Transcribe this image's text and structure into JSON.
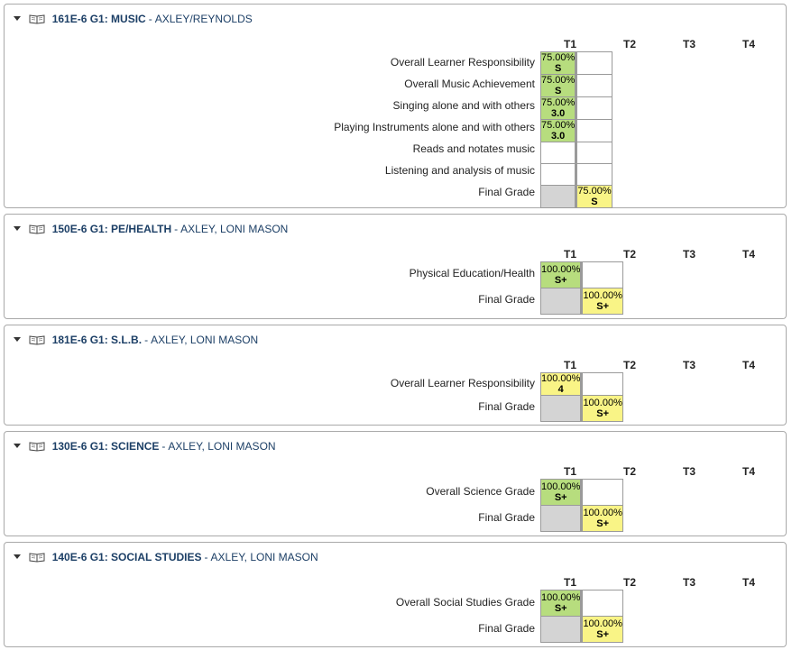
{
  "terms": [
    "T1",
    "T2",
    "T3",
    "T4"
  ],
  "courses": [
    {
      "title": "161E-6 G1: MUSIC",
      "teacher": "AXLEY/REYNOLDS",
      "rows": [
        {
          "label": "Overall Learner Responsibility",
          "pct": "75.00%",
          "grade": "S",
          "color": "green"
        },
        {
          "label": "Overall Music Achievement",
          "pct": "75.00%",
          "grade": "S",
          "color": "green"
        },
        {
          "label": "Singing alone and with others",
          "pct": "75.00%",
          "grade": "3.0",
          "color": "green"
        },
        {
          "label": "Playing Instruments alone and with others",
          "pct": "75.00%",
          "grade": "3.0",
          "color": "green"
        },
        {
          "label": "Reads and notates music",
          "pct": "",
          "grade": "",
          "color": "white"
        },
        {
          "label": "Listening and analysis of music",
          "pct": "",
          "grade": "",
          "color": "white"
        }
      ],
      "final": {
        "label": "Final Grade",
        "pct": "75.00%",
        "grade": "S"
      }
    },
    {
      "title": "150E-6 G1: PE/HEALTH",
      "teacher": "AXLEY, LONI MASON",
      "rows": [
        {
          "label": "Physical Education/Health",
          "pct": "100.00%",
          "grade": "S+",
          "color": "green"
        }
      ],
      "final": {
        "label": "Final Grade",
        "pct": "100.00%",
        "grade": "S+"
      }
    },
    {
      "title": "181E-6 G1: S.L.B.",
      "teacher": "AXLEY, LONI MASON",
      "rows": [
        {
          "label": "Overall Learner Responsibility",
          "pct": "100.00%",
          "grade": "4",
          "color": "yellow"
        }
      ],
      "final": {
        "label": "Final Grade",
        "pct": "100.00%",
        "grade": "S+"
      }
    },
    {
      "title": "130E-6 G1: SCIENCE",
      "teacher": "AXLEY, LONI MASON",
      "rows": [
        {
          "label": "Overall Science Grade",
          "pct": "100.00%",
          "grade": "S+",
          "color": "green"
        }
      ],
      "final": {
        "label": "Final Grade",
        "pct": "100.00%",
        "grade": "S+"
      }
    },
    {
      "title": "140E-6 G1: SOCIAL STUDIES",
      "teacher": "AXLEY, LONI MASON",
      "rows": [
        {
          "label": "Overall Social Studies Grade",
          "pct": "100.00%",
          "grade": "S+",
          "color": "green"
        }
      ],
      "final": {
        "label": "Final Grade",
        "pct": "100.00%",
        "grade": "S+"
      }
    }
  ]
}
